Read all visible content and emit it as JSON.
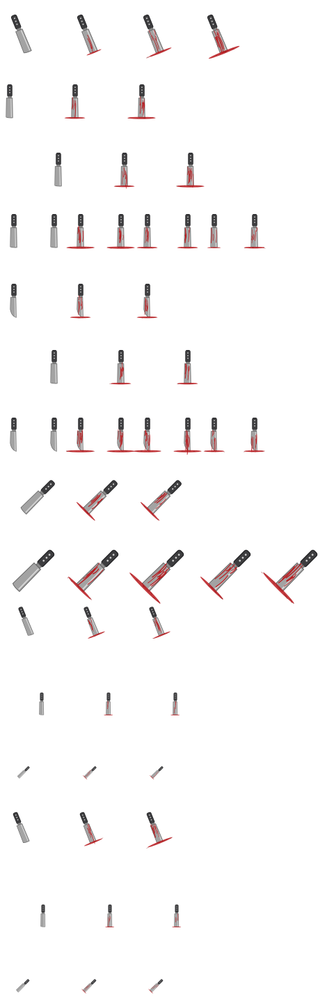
{
  "colors": {
    "background": "#ffffff",
    "handle": "#3d3d3f",
    "handle_edge": "#1e1e20",
    "rivet": "#cfcfcf",
    "blade": "#a3a3a3",
    "blade_light": "#d8d8d8",
    "blade_edge": "#5e5e5e",
    "blood": "#b8181c",
    "blood_dark": "#8a0f12"
  },
  "sprite_sheet": {
    "rows": [
      {
        "variant": "angled-knife",
        "sprites": [
          {
            "blood": 0
          },
          {
            "blood": 1
          },
          {
            "blood": 2
          },
          {
            "blood": 3
          }
        ]
      },
      {
        "variant": "upright-cleaver",
        "sprites": [
          {
            "blood": 0
          },
          {
            "blood": 2
          },
          {
            "blood": 3
          }
        ]
      },
      {
        "variant": "upright-cleaver",
        "sprites": [
          {
            "blood": 0
          },
          {
            "blood": 2
          },
          {
            "blood": 3
          }
        ]
      },
      {
        "variant": "upright-cleaver",
        "sprites": [
          {
            "blood": 0
          },
          {
            "blood": 0
          },
          {
            "blood": 3
          },
          {
            "blood": 3
          },
          {
            "blood": 2
          },
          {
            "blood": 2
          },
          {
            "blood": 1
          },
          {
            "blood": 2
          }
        ]
      },
      {
        "variant": "upright-cleaver-curved",
        "sprites": [
          {
            "blood": 0
          },
          {
            "blood": 2
          },
          {
            "blood": 2
          }
        ]
      },
      {
        "variant": "upright-cleaver",
        "sprites": [
          {
            "blood": 0
          },
          {
            "blood": 2
          },
          {
            "blood": 2
          }
        ]
      },
      {
        "variant": "upright-cleaver-curved",
        "sprites": [
          {
            "blood": 0
          },
          {
            "blood": 0
          },
          {
            "blood": 3
          },
          {
            "blood": 3
          },
          {
            "blood": 3
          },
          {
            "blood": 3
          },
          {
            "blood": 2
          },
          {
            "blood": 2
          }
        ]
      },
      {
        "variant": "diagonal-knife",
        "sprites": [
          {
            "blood": 0
          },
          {
            "blood": 2
          },
          {
            "blood": 2
          }
        ]
      },
      {
        "variant": "large-diagonal-knife",
        "sprites": [
          {
            "blood": 0
          },
          {
            "blood": 2
          },
          {
            "blood": 3
          },
          {
            "blood": 2
          },
          {
            "blood": 3
          }
        ]
      },
      {
        "variant": "stuck-knife",
        "sprites": [
          {
            "blood": 0
          },
          {
            "blood": 2
          },
          {
            "blood": 2
          }
        ]
      },
      {
        "variant": "small-upright-knife",
        "sprites": [
          {
            "blood": 0
          },
          {
            "blood": 1
          },
          {
            "blood": 1
          }
        ]
      },
      {
        "variant": "small-diagonal-knife",
        "sprites": [
          {
            "blood": 0
          },
          {
            "blood": 1
          },
          {
            "blood": 1
          }
        ]
      },
      {
        "variant": "angled-knife",
        "sprites": [
          {
            "blood": 0
          },
          {
            "blood": 2
          },
          {
            "blood": 3
          }
        ]
      },
      {
        "variant": "small-upright-knife",
        "sprites": [
          {
            "blood": 0
          },
          {
            "blood": 1
          },
          {
            "blood": 1
          }
        ]
      },
      {
        "variant": "small-diagonal-knife",
        "sprites": [
          {
            "blood": 0
          },
          {
            "blood": 1
          },
          {
            "blood": 1
          }
        ]
      }
    ]
  }
}
